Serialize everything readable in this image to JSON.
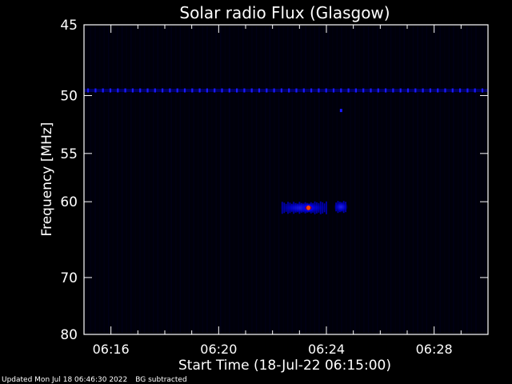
{
  "chart_data": {
    "type": "heatmap",
    "title": "Solar radio Flux (Glasgow)",
    "xlabel": "Start Time (18-Jul-22 06:15:00)",
    "ylabel": "Frequency [MHz]",
    "x_ticks": [
      "06:16",
      "06:20",
      "06:24",
      "06:28"
    ],
    "x_tick_minutes": [
      1,
      5,
      9,
      13
    ],
    "x_range_minutes": [
      0,
      15
    ],
    "y_ticks": [
      45,
      50,
      55,
      60,
      70,
      80
    ],
    "y_range": [
      45,
      80
    ],
    "y_scale": "reciprocal",
    "colormap": [
      "#000000",
      "#00008b",
      "#0000ff",
      "#8b0000",
      "#ff0000",
      "#ff6600"
    ],
    "interference_line_mhz": 49.6,
    "burst_regions": [
      {
        "t_start": "06:22:20",
        "t_end": "06:24:00",
        "freq_mhz": 60.7,
        "peak_time": "06:23:20",
        "intensity": "high"
      },
      {
        "t_start": "06:24:20",
        "t_end": "06:24:45",
        "freq_mhz": 60.6,
        "intensity": "medium"
      },
      {
        "t_start": "06:24:30",
        "t_end": "06:24:35",
        "freq_mhz": 51.2,
        "intensity": "low"
      }
    ]
  },
  "footer": {
    "updated": "Updated Mon Jul 18 06:46:30 2022",
    "note": "BG subtracted"
  }
}
